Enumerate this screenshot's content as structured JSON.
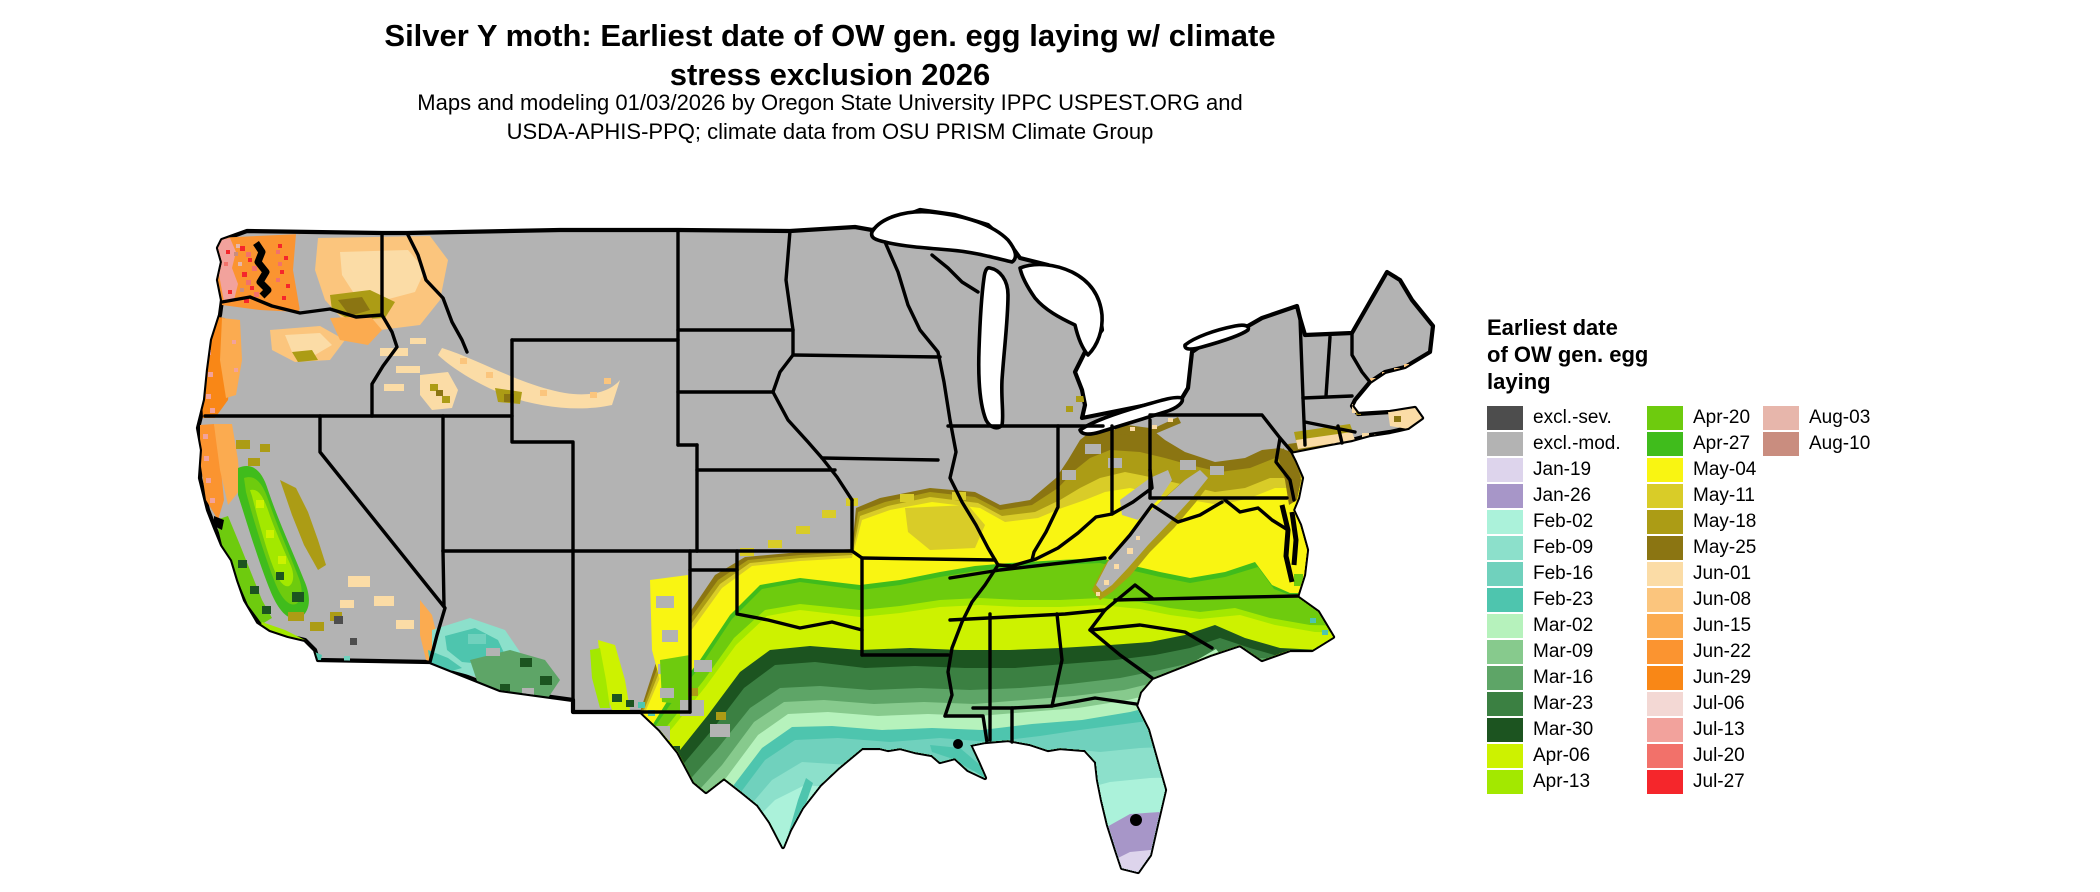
{
  "title": {
    "line1": "Silver Y moth: Earliest date of OW gen. egg laying w/ climate",
    "line2": "stress exclusion 2026"
  },
  "subtitle": {
    "line1": "Maps and modeling 01/03/2026 by Oregon State University IPPC USPEST.ORG and",
    "line2": "USDA-APHIS-PPQ; climate data from OSU PRISM Climate Group"
  },
  "legend": {
    "title_line1": "Earliest date",
    "title_line2": "of OW gen. egg",
    "title_line3": "laying",
    "columns": [
      [
        "excl.-sev.",
        "excl.-mod.",
        "Jan-19",
        "Jan-26",
        "Feb-02",
        "Feb-09",
        "Feb-16",
        "Feb-23",
        "Mar-02",
        "Mar-09",
        "Mar-16",
        "Mar-23",
        "Mar-30",
        "Apr-06",
        "Apr-13"
      ],
      [
        "Apr-20",
        "Apr-27",
        "May-04",
        "May-11",
        "May-18",
        "May-25",
        "Jun-01",
        "Jun-08",
        "Jun-15",
        "Jun-22",
        "Jun-29",
        "Jul-06",
        "Jul-13",
        "Jul-20",
        "Jul-27"
      ],
      [
        "Aug-03",
        "Aug-10"
      ]
    ]
  },
  "colors": {
    "excl.-sev.": "#4d4d4d",
    "excl.-mod.": "#b3b3b3",
    "Jan-19": "#ddd4ec",
    "Jan-26": "#a796c8",
    "Feb-02": "#abf2da",
    "Feb-09": "#8ce0cb",
    "Feb-16": "#70d1bd",
    "Feb-23": "#4ec5ae",
    "Mar-02": "#b6f2bc",
    "Mar-09": "#87ca8d",
    "Mar-16": "#5ea567",
    "Mar-23": "#3b8042",
    "Mar-30": "#1c5420",
    "Apr-06": "#cdf200",
    "Apr-13": "#a3e800",
    "Apr-20": "#6ecb0e",
    "Apr-27": "#40bc1c",
    "May-04": "#f9f512",
    "May-11": "#d9cc28",
    "May-18": "#ac9c15",
    "May-25": "#8b7512",
    "Jun-01": "#fbdca6",
    "Jun-08": "#fbc57d",
    "Jun-15": "#fbab50",
    "Jun-22": "#fb9430",
    "Jun-29": "#f98716",
    "Jul-06": "#f3d8d4",
    "Jul-13": "#f2a29c",
    "Jul-20": "#f2716a",
    "Jul-27": "#f5262b",
    "Aug-03": "#e7b6ab",
    "Aug-10": "#c98d7f"
  },
  "map": {
    "region": "Contiguous United States",
    "water_color": "#000000",
    "state_border_color": "#000000",
    "background_land_key": "excl.-mod."
  }
}
